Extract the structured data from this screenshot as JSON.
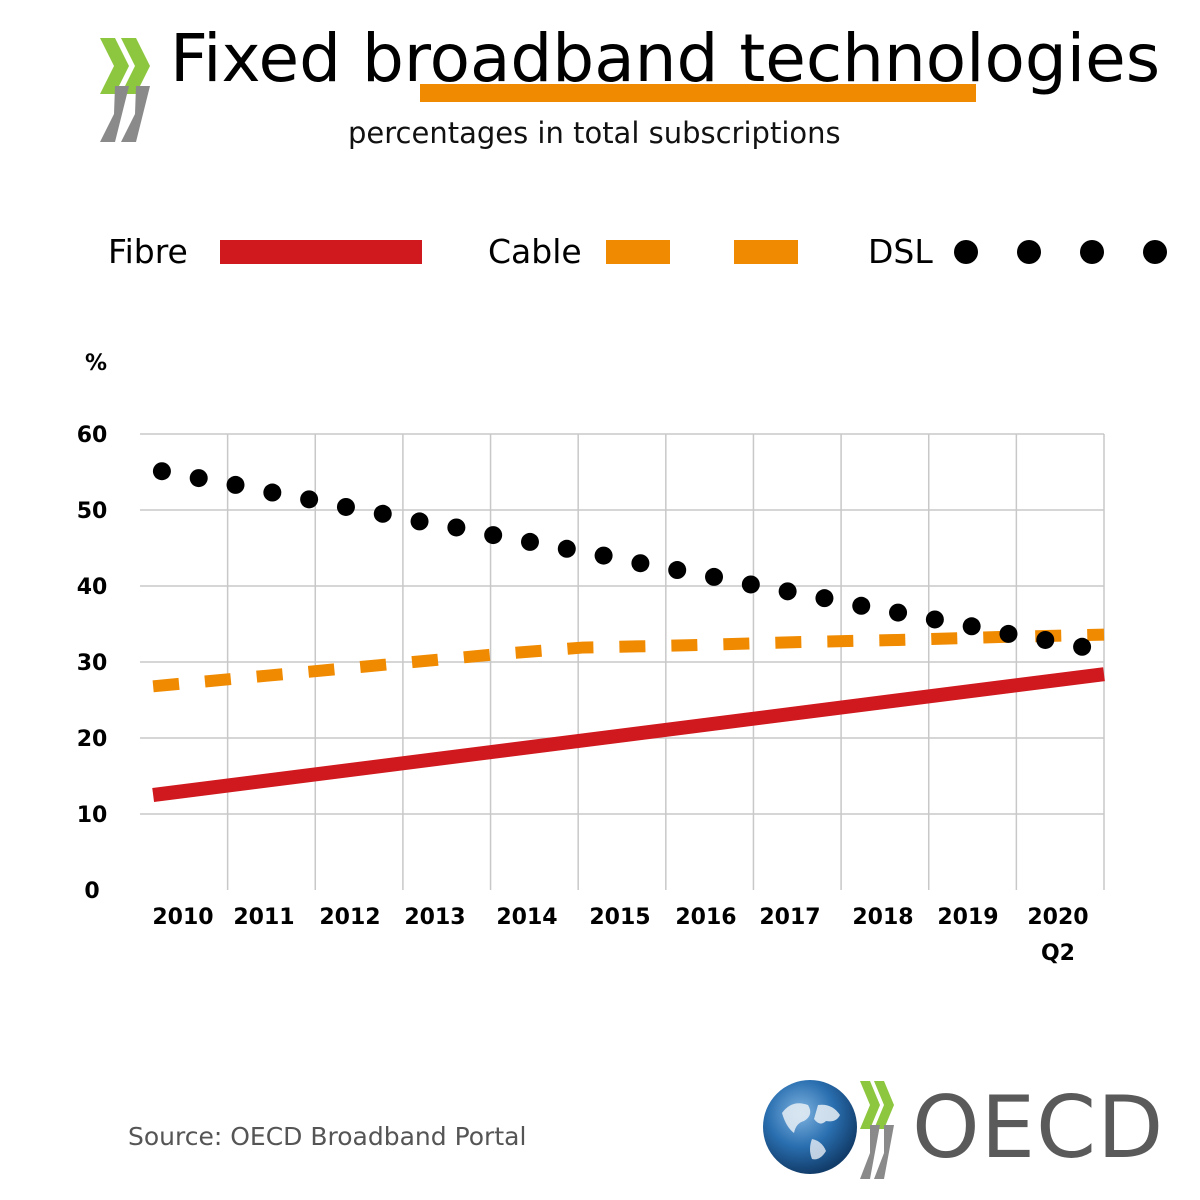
{
  "header": {
    "title": "Fixed broadband technologies",
    "subtitle": "percentages in total subscriptions"
  },
  "legend": {
    "fibre": "Fibre",
    "cable": "Cable",
    "dsl": "DSL"
  },
  "colors": {
    "fibre": "#d0191e",
    "cable": "#f08a00",
    "dsl": "#000000",
    "grid": "#c8c8c8",
    "accent_green": "#8dc63f",
    "chevron_grey": "#8a8a8a",
    "globe_blue": "#2a6fb0"
  },
  "chart_data": {
    "type": "line",
    "title": "Fixed broadband technologies",
    "subtitle": "percentages in total subscriptions",
    "ylabel": "%",
    "xlabel": "",
    "ylim": [
      0,
      60
    ],
    "y_ticks": [
      "0",
      "10",
      "20",
      "30",
      "40",
      "50",
      "60"
    ],
    "grid": true,
    "legend_position": "top",
    "x_tick_labels": [
      "2010",
      "2011",
      "2012",
      "2013",
      "2014",
      "2015",
      "2016",
      "2017",
      "2018",
      "2019",
      "2020",
      "Q2"
    ],
    "series": [
      {
        "name": "Fibre",
        "style": "solid",
        "points": [
          [
            2009.9,
            12.5
          ],
          [
            2020.75,
            28.4
          ]
        ]
      },
      {
        "name": "Cable",
        "style": "dashed",
        "points": [
          [
            2009.9,
            26.8
          ],
          [
            2011.2,
            28.2
          ],
          [
            2012.5,
            29.6
          ],
          [
            2013.8,
            31.0
          ],
          [
            2014.8,
            31.9
          ],
          [
            2016.0,
            32.2
          ],
          [
            2017.2,
            32.6
          ],
          [
            2018.4,
            32.9
          ],
          [
            2019.6,
            33.3
          ],
          [
            2020.75,
            33.6
          ]
        ]
      },
      {
        "name": "DSL",
        "style": "dotted",
        "x": [
          2010.0,
          2010.42,
          2010.84,
          2011.26,
          2011.68,
          2012.1,
          2012.52,
          2012.94,
          2013.36,
          2013.78,
          2014.2,
          2014.62,
          2015.04,
          2015.46,
          2015.88,
          2016.3,
          2016.72,
          2017.14,
          2017.56,
          2017.98,
          2018.4,
          2018.82,
          2019.24,
          2019.66,
          2020.08,
          2020.5
        ],
        "values": [
          55.1,
          54.2,
          53.3,
          52.3,
          51.4,
          50.4,
          49.5,
          48.5,
          47.7,
          46.7,
          45.8,
          44.9,
          44.0,
          43.0,
          42.1,
          41.2,
          40.2,
          39.3,
          38.4,
          37.4,
          36.5,
          35.6,
          34.7,
          33.7,
          32.9,
          32.0
        ]
      }
    ]
  },
  "footer": {
    "source": "Source: OECD Broadband Portal",
    "logo_text": "OECD"
  }
}
